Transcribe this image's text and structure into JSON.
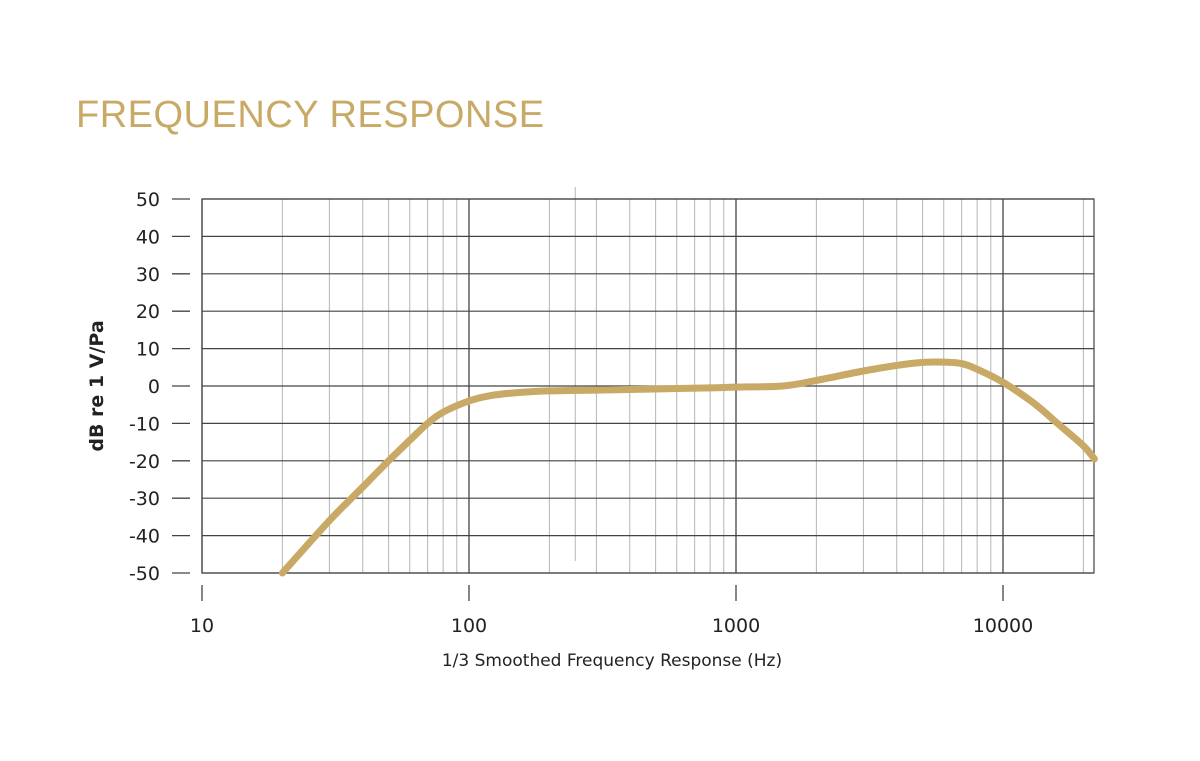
{
  "page": {
    "title": "FREQUENCY RESPONSE",
    "accent_color": "#C9A966"
  },
  "chart_data": {
    "type": "line",
    "title": "FREQUENCY RESPONSE",
    "xlabel": "1/3 Smoothed Frequency Response (Hz)",
    "ylabel": "dB re 1 V/Pa",
    "x_scale": "log",
    "xlim": [
      10,
      22000
    ],
    "ylim": [
      -50,
      50
    ],
    "x_ticks": [
      10,
      100,
      1000,
      10000
    ],
    "x_tick_labels": [
      "10",
      "100",
      "1000",
      "10000"
    ],
    "y_ticks": [
      50,
      40,
      30,
      20,
      10,
      0,
      -10,
      -20,
      -30,
      -40,
      -50
    ],
    "y_tick_labels": [
      "50",
      "40",
      "30",
      "20",
      "10",
      "0",
      "-10",
      "-20",
      "-30",
      "-40",
      "-50"
    ],
    "grid": true,
    "line_color": "#C9A966",
    "series": [
      {
        "x": [
          20,
          30,
          40,
          50,
          60,
          70,
          80,
          100,
          120,
          150,
          200,
          300,
          500,
          800,
          1000,
          1500,
          2000,
          3000,
          4000,
          5000,
          6000,
          7000,
          8000,
          10000,
          13000,
          16000,
          20000,
          22000
        ],
        "values": [
          -50,
          -36,
          -27,
          -20,
          -14.5,
          -10,
          -7,
          -4,
          -2.6,
          -1.8,
          -1.3,
          -1.1,
          -0.8,
          -0.5,
          -0.3,
          0,
          1.5,
          4,
          5.5,
          6.3,
          6.4,
          6,
          4.5,
          1,
          -4.5,
          -10,
          -16,
          -19.5
        ]
      }
    ]
  }
}
